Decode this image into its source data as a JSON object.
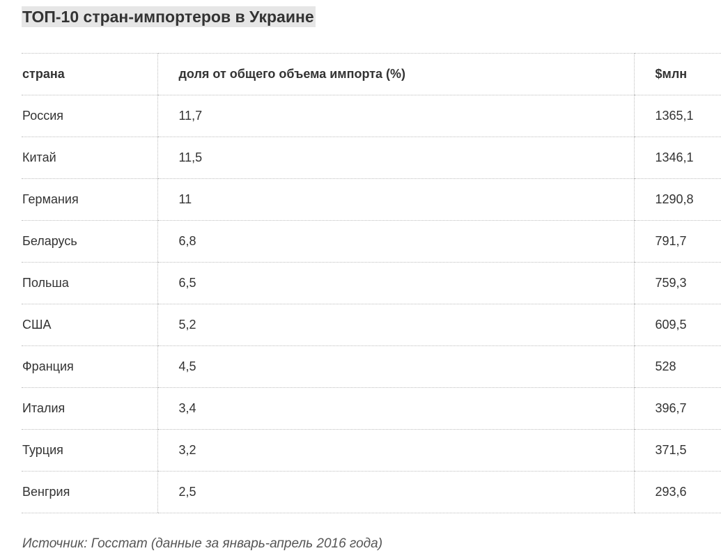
{
  "title": "ТОП-10 стран-импортеров в Украине",
  "table": {
    "headers": [
      "страна",
      "доля от общего объема импорта (%)",
      "$млн"
    ],
    "rows": [
      [
        "Россия",
        "11,7",
        "1365,1"
      ],
      [
        "Китай",
        "11,5",
        "1346,1"
      ],
      [
        "Германия",
        "11",
        "1290,8"
      ],
      [
        "Беларусь",
        "6,8",
        "791,7"
      ],
      [
        "Польша",
        "6,5",
        "759,3"
      ],
      [
        "США",
        "5,2",
        "609,5"
      ],
      [
        "Франция",
        "4,5",
        "528"
      ],
      [
        "Италия",
        "3,4",
        "396,7"
      ],
      [
        "Турция",
        "3,2",
        "371,5"
      ],
      [
        "Венгрия",
        "2,5",
        "293,6"
      ]
    ]
  },
  "source": "Источник: Госстат (данные за январь-апрель 2016 года)"
}
